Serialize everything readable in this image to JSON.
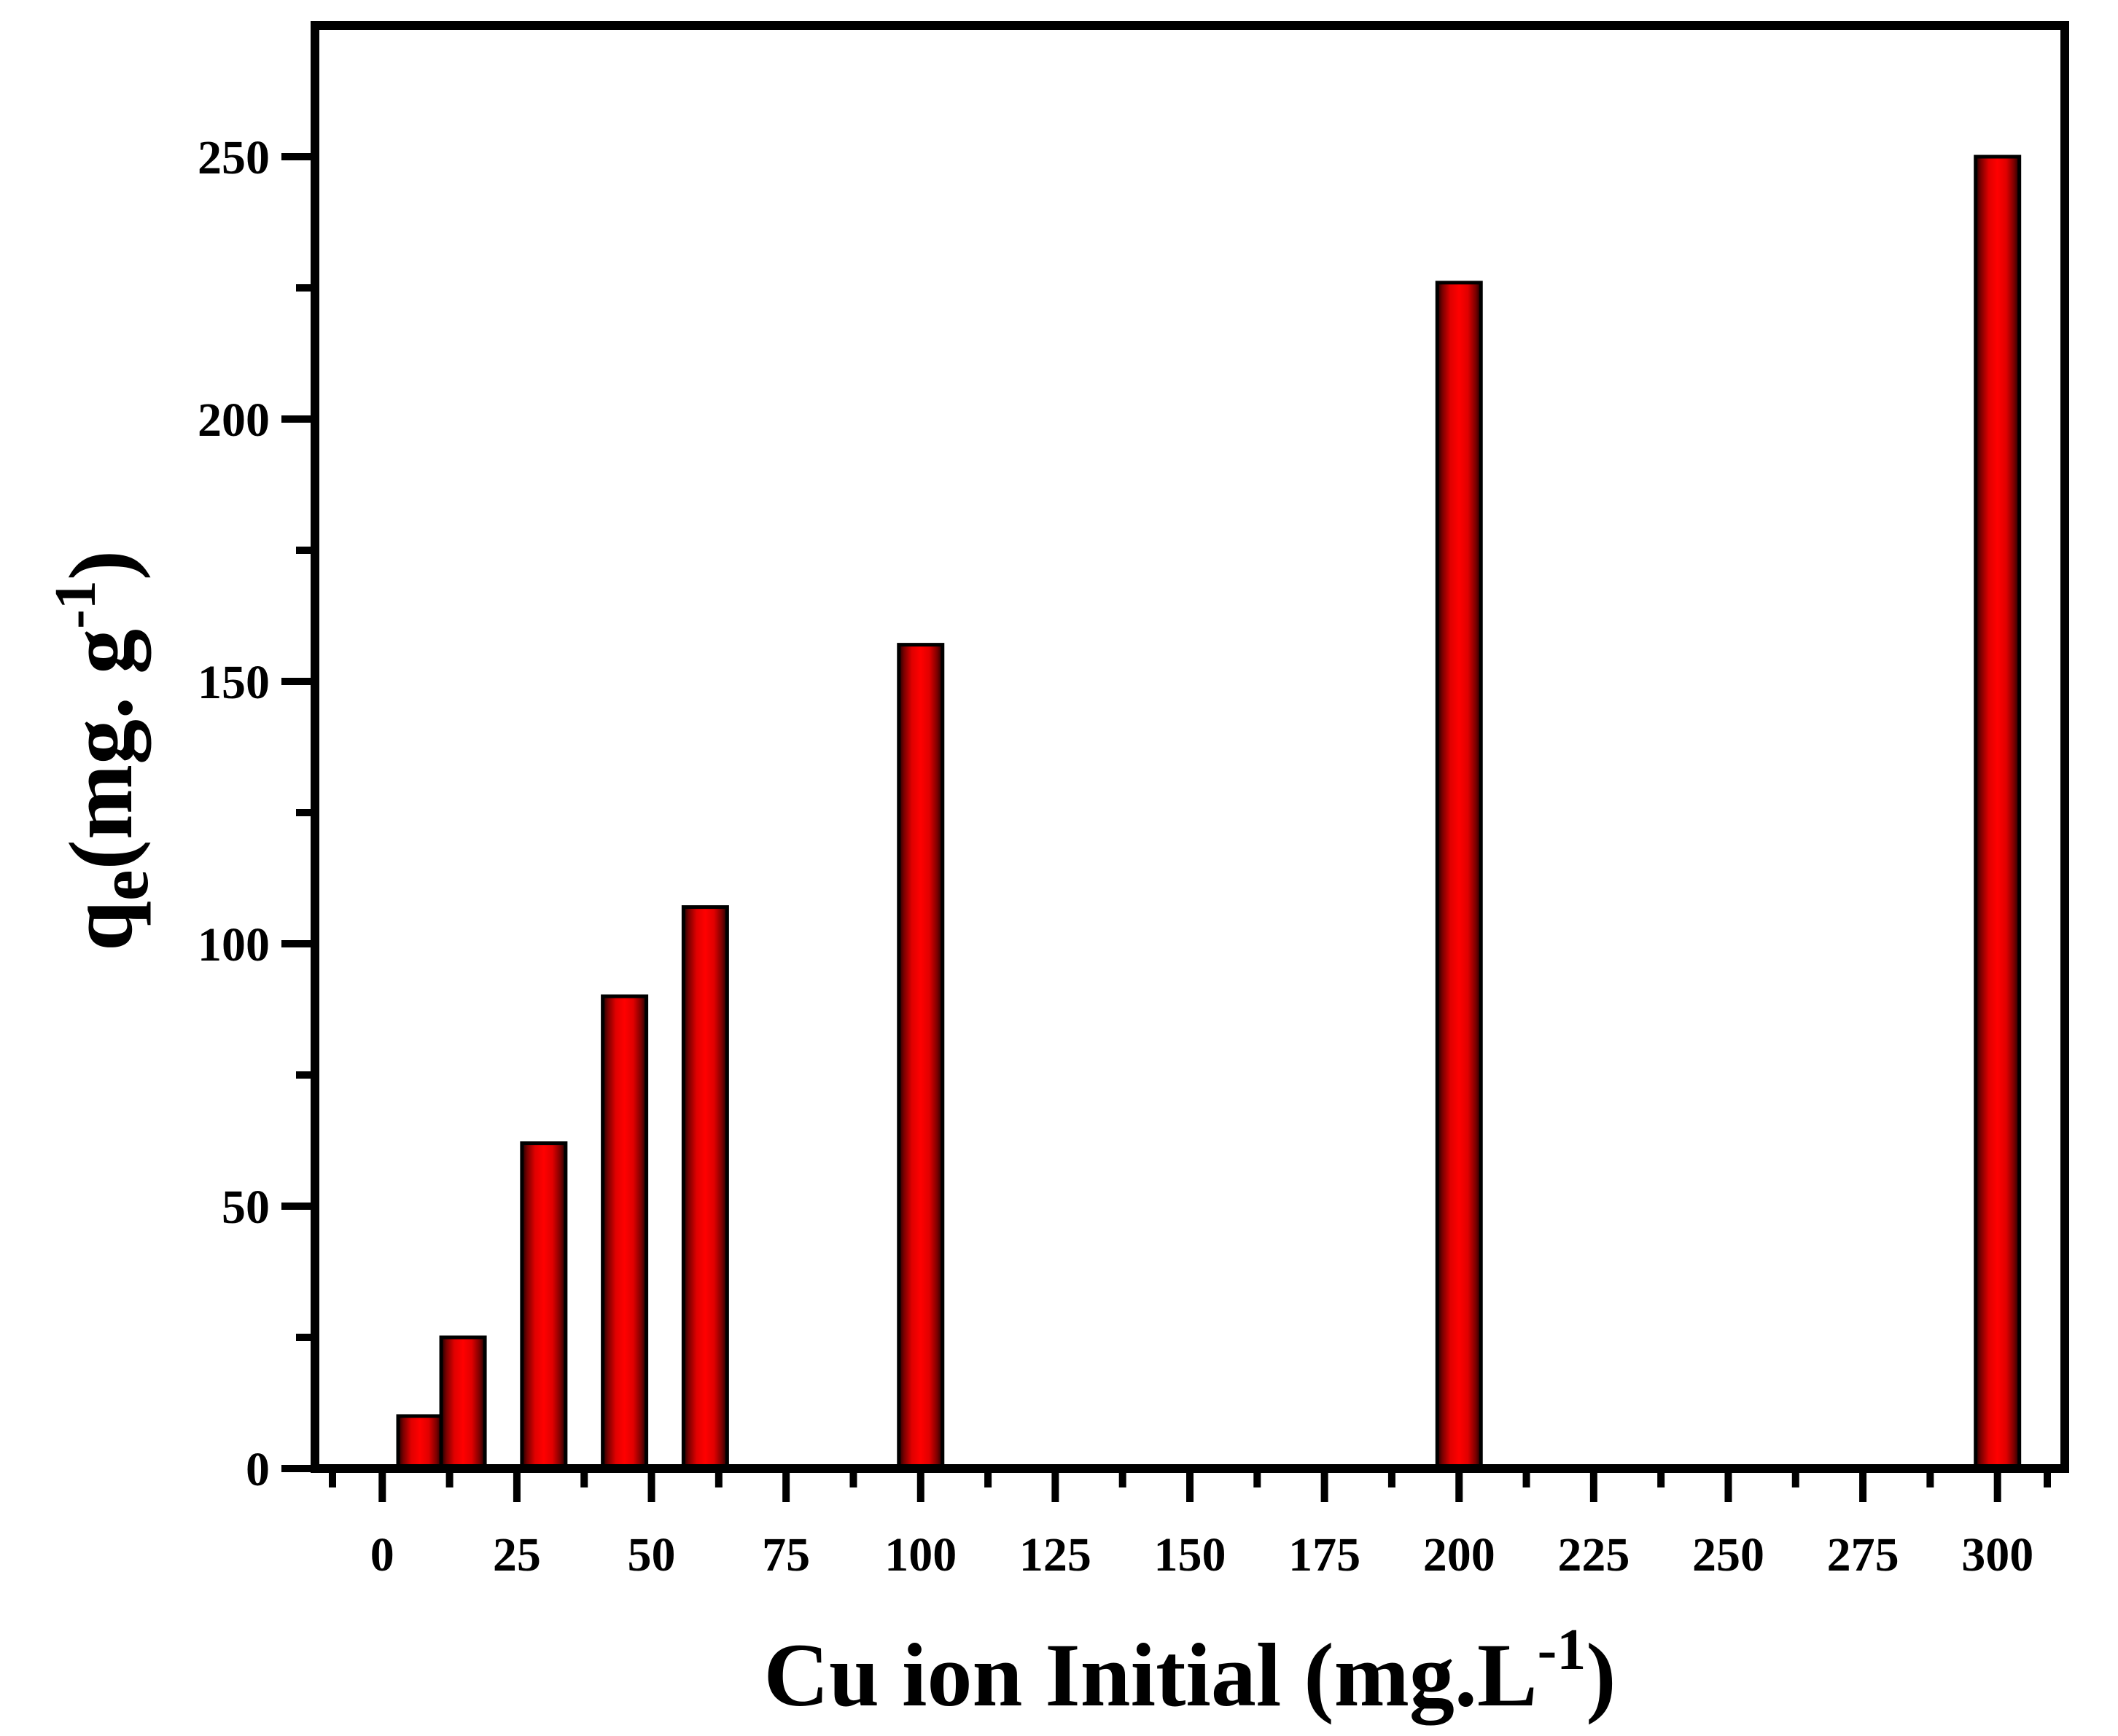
{
  "chart_data": {
    "type": "bar",
    "x": [
      7,
      15,
      30,
      45,
      60,
      100,
      200,
      300
    ],
    "values": [
      10,
      25,
      62,
      90,
      107,
      157,
      226,
      250
    ],
    "xlabel": {
      "main": "Cu ion Initial  (mg.L",
      "superscript": "-1",
      "close": ")"
    },
    "ylabel": {
      "q": "q",
      "subscript": "e",
      "main": "(mg. g",
      "superscript": "-1",
      "close": ")"
    },
    "xlim": [
      -12.5,
      312.5
    ],
    "ylim": [
      0,
      275
    ],
    "xticks": [
      0,
      25,
      50,
      75,
      100,
      125,
      150,
      175,
      200,
      225,
      250,
      275,
      300
    ],
    "xtick_labels": [
      "0",
      "25",
      "50",
      "75",
      "100",
      "125",
      "150",
      "175",
      "200",
      "225",
      "250",
      "275",
      "300"
    ],
    "yticks": [
      0,
      50,
      100,
      150,
      200,
      250
    ],
    "ytick_labels": [
      "0",
      "50",
      "100",
      "150",
      "200",
      "250"
    ],
    "bar_color": "#ff0000",
    "bar_edge_color": "#000000",
    "grid": false,
    "legend": "none"
  }
}
